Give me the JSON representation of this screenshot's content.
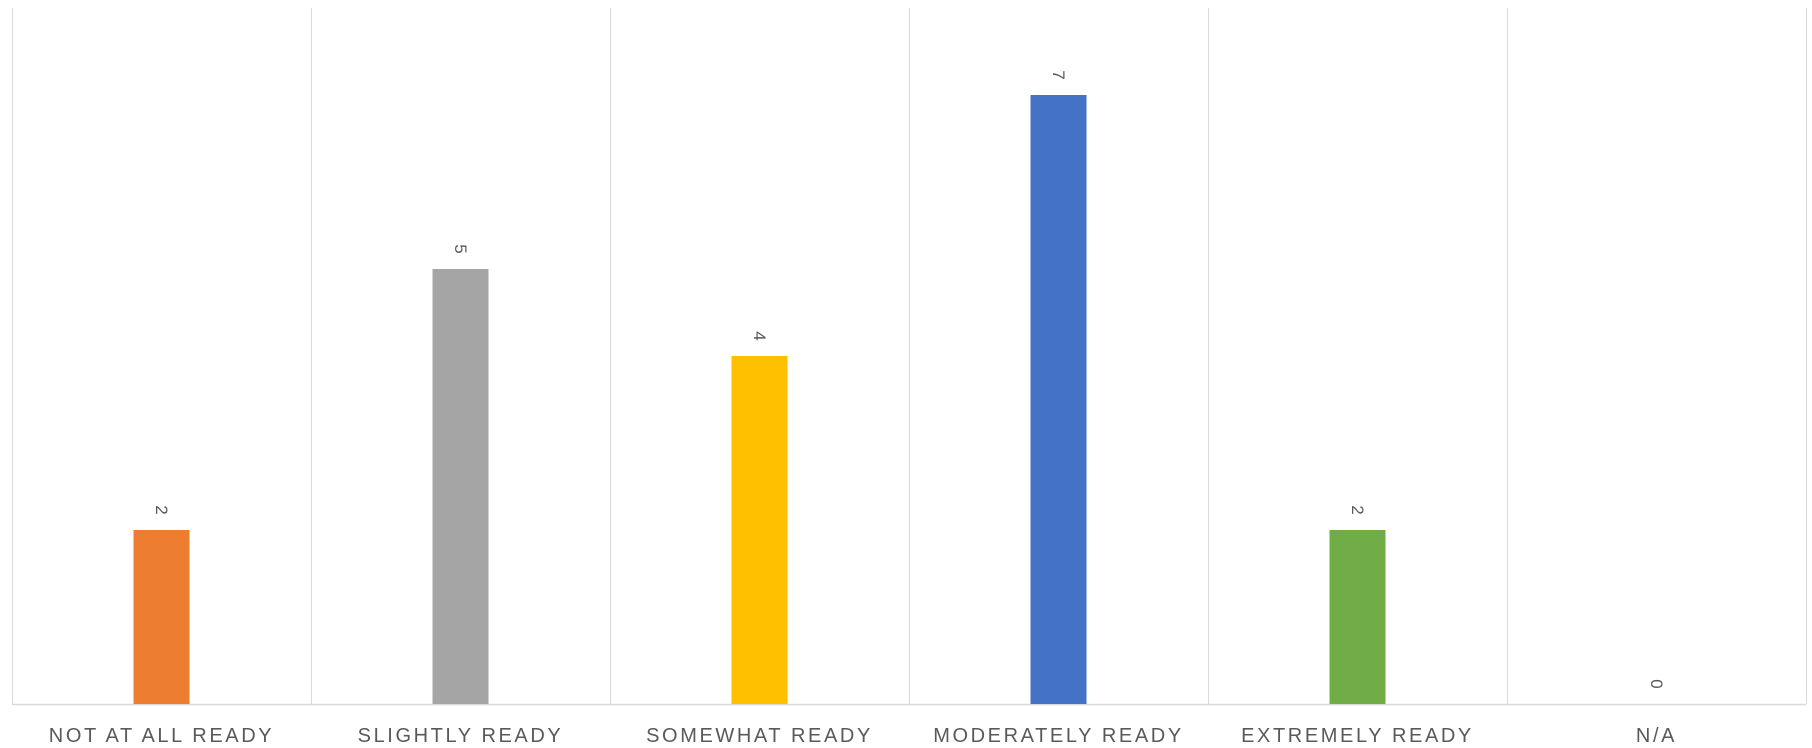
{
  "chart_data": {
    "type": "bar",
    "categories": [
      "NOT AT ALL READY",
      "SLIGHTLY READY",
      "SOMEWHAT READY",
      "MODERATELY READY",
      "EXTREMELY READY",
      "N/A"
    ],
    "values": [
      2,
      5,
      4,
      7,
      2,
      0
    ],
    "colors": [
      "#ED7D31",
      "#A5A5A5",
      "#FFC000",
      "#4472C4",
      "#70AD47",
      "#5B9BD5"
    ],
    "ylim": [
      0,
      8
    ],
    "data_labels": true,
    "data_label_rotation": "rotated 90 degrees",
    "grid": "vertical category separators",
    "legend": "none",
    "title": "",
    "xlabel": "",
    "ylabel": ""
  }
}
